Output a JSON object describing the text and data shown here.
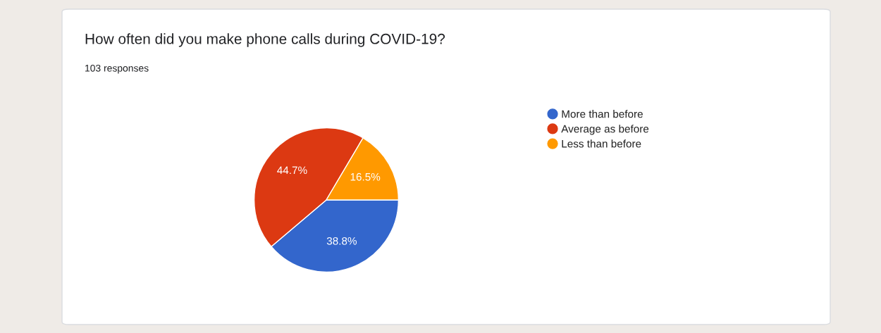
{
  "chart_data": {
    "type": "pie",
    "title": "How often did you make phone calls during COVID-19?",
    "subtitle": "103 responses",
    "categories": [
      "More than before",
      "Average as before",
      "Less than before"
    ],
    "values": [
      38.8,
      44.7,
      16.5
    ],
    "value_labels": [
      "38.8%",
      "44.7%",
      "16.5%"
    ],
    "colors": [
      "#3366cc",
      "#dc3912",
      "#ff9900"
    ],
    "legend": "right"
  }
}
